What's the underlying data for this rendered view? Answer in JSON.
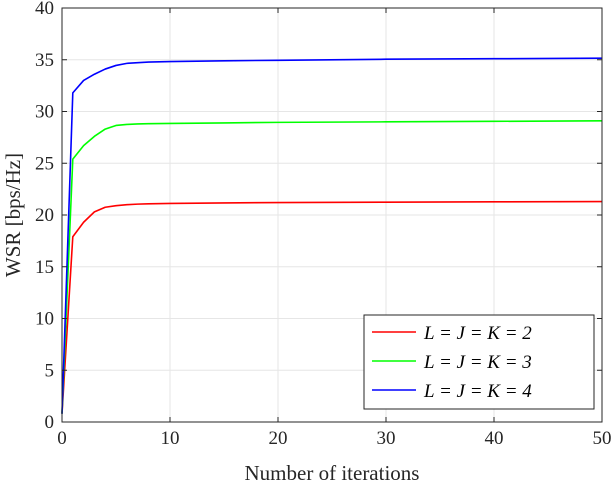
{
  "chart_data": {
    "type": "line",
    "title": "",
    "xlabel": "Number of iterations",
    "ylabel": "WSR [bps/Hz]",
    "xlim": [
      0,
      50
    ],
    "ylim": [
      0,
      40
    ],
    "xticks": [
      0,
      10,
      20,
      30,
      40,
      50
    ],
    "yticks": [
      0,
      5,
      10,
      15,
      20,
      25,
      30,
      35,
      40
    ],
    "grid": true,
    "legend_position": "bottom-right",
    "x": [
      0,
      1,
      2,
      3,
      4,
      5,
      6,
      7,
      8,
      10,
      15,
      20,
      30,
      40,
      50
    ],
    "series": [
      {
        "name": "L = J = K = 2",
        "color": "#ff0000",
        "values": [
          0.8,
          17.9,
          19.3,
          20.3,
          20.75,
          20.9,
          21.0,
          21.05,
          21.08,
          21.12,
          21.17,
          21.2,
          21.24,
          21.27,
          21.3
        ]
      },
      {
        "name": "L = J = K = 3",
        "color": "#00ff00",
        "values": [
          0.8,
          25.4,
          26.7,
          27.6,
          28.3,
          28.65,
          28.75,
          28.8,
          28.82,
          28.85,
          28.9,
          28.95,
          29.0,
          29.05,
          29.1
        ]
      },
      {
        "name": "L = J = K = 4",
        "color": "#0000ff",
        "values": [
          0.8,
          31.8,
          33.0,
          33.6,
          34.1,
          34.45,
          34.65,
          34.72,
          34.78,
          34.82,
          34.9,
          34.95,
          35.05,
          35.1,
          35.15
        ]
      }
    ]
  }
}
